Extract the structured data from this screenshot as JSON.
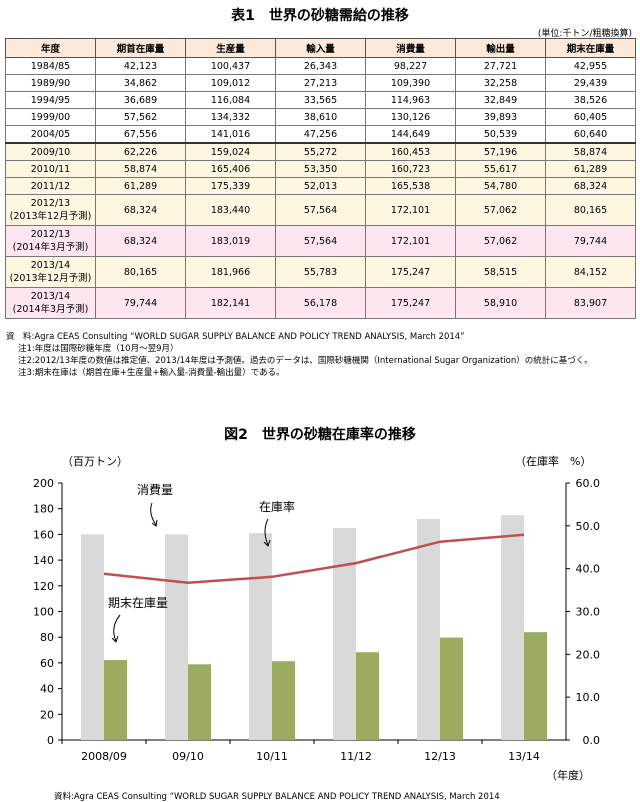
{
  "table": {
    "title": "表1　世界の砂糖需給の推移",
    "unit": "(単位:千トン/粗糖換算)",
    "headers": [
      "年度",
      "期首在庫量",
      "生産量",
      "輸入量",
      "消費量",
      "輸出量",
      "期末在庫量"
    ],
    "rows": [
      {
        "year": [
          "1984/85"
        ],
        "values": [
          "42,123",
          "100,437",
          "26,343",
          "98,227",
          "27,721",
          "42,955"
        ],
        "bg": "plain",
        "topRule": false
      },
      {
        "year": [
          "1989/90"
        ],
        "values": [
          "34,862",
          "109,012",
          "27,213",
          "109,390",
          "32,258",
          "29,439"
        ],
        "bg": "plain",
        "topRule": false
      },
      {
        "year": [
          "1994/95"
        ],
        "values": [
          "36,689",
          "116,084",
          "33,565",
          "114,963",
          "32,849",
          "38,526"
        ],
        "bg": "plain",
        "topRule": false
      },
      {
        "year": [
          "1999/00"
        ],
        "values": [
          "57,562",
          "134,332",
          "38,610",
          "130,126",
          "39,893",
          "60,405"
        ],
        "bg": "plain",
        "topRule": false
      },
      {
        "year": [
          "2004/05"
        ],
        "values": [
          "67,556",
          "141,016",
          "47,256",
          "144,649",
          "50,539",
          "60,640"
        ],
        "bg": "plain",
        "topRule": false
      },
      {
        "year": [
          "2009/10"
        ],
        "values": [
          "62,226",
          "159,024",
          "55,272",
          "160,453",
          "57,196",
          "58,874"
        ],
        "bg": "yellow",
        "topRule": true
      },
      {
        "year": [
          "2010/11"
        ],
        "values": [
          "58,874",
          "165,406",
          "53,350",
          "160,723",
          "55,617",
          "61,289"
        ],
        "bg": "yellow",
        "topRule": false
      },
      {
        "year": [
          "2011/12"
        ],
        "values": [
          "61,289",
          "175,339",
          "52,013",
          "165,538",
          "54,780",
          "68,324"
        ],
        "bg": "yellow",
        "topRule": false
      },
      {
        "year": [
          "2012/13",
          "(2013年12月予測)"
        ],
        "values": [
          "68,324",
          "183,440",
          "57,564",
          "172,101",
          "57,062",
          "80,165"
        ],
        "bg": "yellow",
        "topRule": false
      },
      {
        "year": [
          "2012/13",
          "(2014年3月予測)"
        ],
        "values": [
          "68,324",
          "183,019",
          "57,564",
          "172,101",
          "57,062",
          "79,744"
        ],
        "bg": "pink",
        "topRule": false
      },
      {
        "year": [
          "2013/14",
          "(2013年12月予測)"
        ],
        "values": [
          "80,165",
          "181,966",
          "55,783",
          "175,247",
          "58,515",
          "84,152"
        ],
        "bg": "yellow",
        "topRule": false
      },
      {
        "year": [
          "2013/14",
          "(2014年3月予測)"
        ],
        "values": [
          "79,744",
          "182,141",
          "56,178",
          "175,247",
          "58,910",
          "83,907"
        ],
        "bg": "pink",
        "topRule": false
      }
    ],
    "notes": [
      "資　料:Agra CEAS Consulting “WORLD SUGAR SUPPLY BALANCE AND POLICY TREND ANALYSIS, March 2014”",
      "注1:年度は国際砂糖年度（10月～翌9月）",
      "注2:2012/13年度の数値は推定値、2013/14年度は予測値。過去のデータは、国際砂糖機関（International Sugar Organization）の統計に基づく。",
      "注3:期末在庫は（期首在庫+生産量+輸入量-消費量-輸出量）である。"
    ]
  },
  "chart": {
    "title": "図2　世界の砂糖在庫率の推移",
    "left_unit": "（百万トン）",
    "right_unit": "（在庫率　%）",
    "x_unit": "（年度）",
    "source": "資料:Agra CEAS Consulting “WORLD SUGAR SUPPLY BALANCE AND POLICY TREND ANALYSIS, March 2014",
    "annotations": {
      "consumption": "消費量",
      "stock_ratio": "在庫率",
      "ending_stock": "期末在庫量"
    },
    "colors": {
      "consumption": "#d9d9d9",
      "ending_stock": "#9bab5f",
      "stock_ratio": "#c0504d"
    },
    "left_ticks": [
      "0",
      "20",
      "40",
      "60",
      "80",
      "100",
      "120",
      "140",
      "160",
      "180",
      "200"
    ],
    "right_ticks": [
      "0.0",
      "10.0",
      "20.0",
      "30.0",
      "40.0",
      "50.0",
      "60.0"
    ]
  },
  "chart_data": {
    "type": "bar",
    "categories": [
      "2008/09",
      "09/10",
      "10/11",
      "11/12",
      "12/13",
      "13/14"
    ],
    "series": [
      {
        "name": "消費量",
        "type": "bar",
        "axis": "left",
        "values": [
          160,
          160,
          161,
          165,
          172,
          175
        ]
      },
      {
        "name": "期末在庫量",
        "type": "bar",
        "axis": "left",
        "values": [
          62.2,
          58.9,
          61.3,
          68.3,
          79.7,
          83.9
        ]
      },
      {
        "name": "在庫率",
        "type": "line",
        "axis": "right",
        "values": [
          38.8,
          36.7,
          38.1,
          41.3,
          46.3,
          47.9
        ]
      }
    ],
    "xlabel": "（年度）",
    "ylabel": "（百万トン）",
    "y2label": "（在庫率　%）",
    "ylim": [
      0,
      200
    ],
    "y2lim": [
      0,
      60
    ],
    "grid": false
  }
}
